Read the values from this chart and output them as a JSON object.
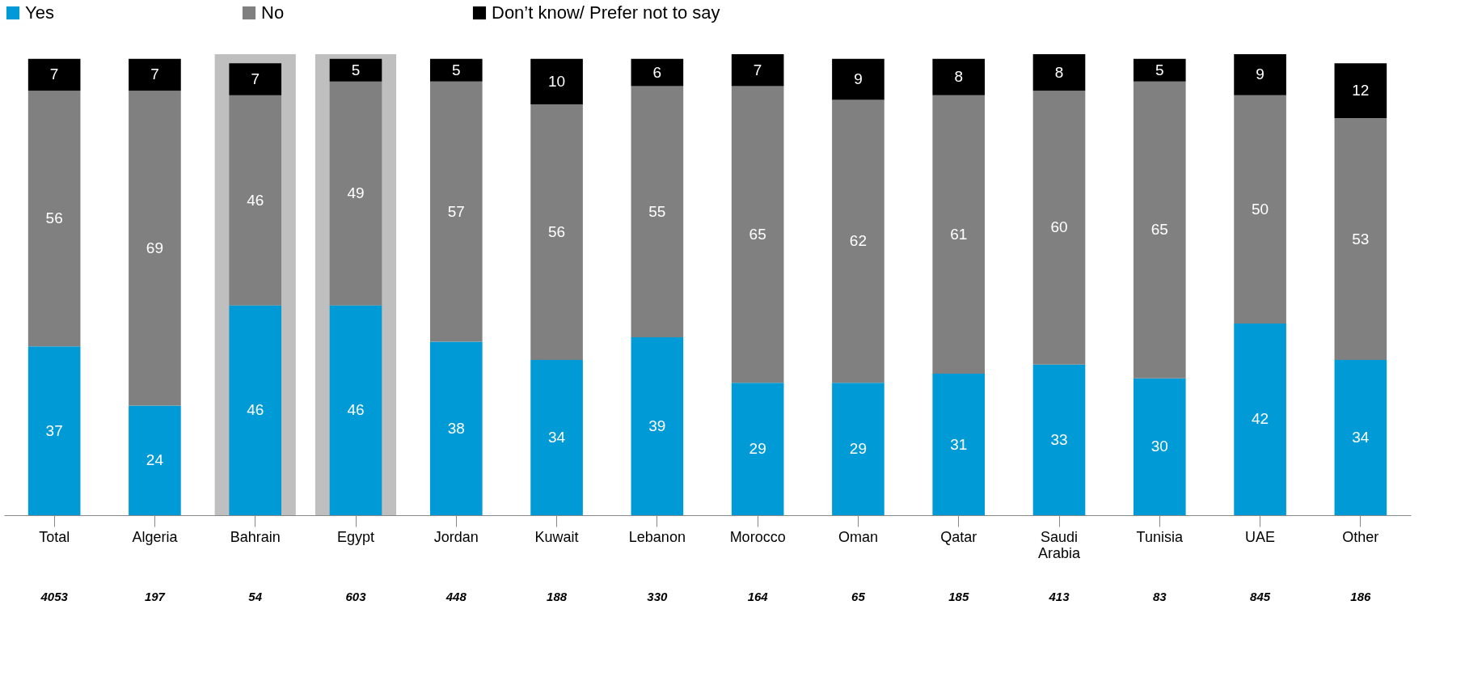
{
  "chart_data": {
    "type": "bar",
    "stacked": true,
    "data_labels": true,
    "legend": "top",
    "categories": [
      "Total",
      "Algeria",
      "Bahrain",
      "Egypt",
      "Jordan",
      "Kuwait",
      "Lebanon",
      "Morocco",
      "Oman",
      "Qatar",
      "Saudi Arabia",
      "Tunisia",
      "UAE",
      "Other"
    ],
    "series": [
      {
        "name": "Yes",
        "color": "#009bd6",
        "values": [
          37,
          24,
          46,
          46,
          38,
          34,
          39,
          29,
          29,
          31,
          33,
          30,
          42,
          34
        ]
      },
      {
        "name": "No",
        "color": "#808080",
        "values": [
          56,
          69,
          46,
          49,
          57,
          56,
          55,
          65,
          62,
          61,
          60,
          65,
          50,
          53
        ]
      },
      {
        "name": "Don’t know/ Prefer not to say",
        "color": "#000000",
        "values": [
          7,
          7,
          7,
          5,
          5,
          10,
          6,
          7,
          9,
          8,
          8,
          5,
          9,
          12
        ]
      }
    ],
    "bands": [
      {
        "axis": "x",
        "from": "Bahrain",
        "to": "Bahrain",
        "color": "#bfbfbf"
      },
      {
        "axis": "x",
        "from": "Egypt",
        "to": "Egypt",
        "color": "#bfbfbf"
      }
    ],
    "annotations": [
      "4053",
      "197",
      "54",
      "603",
      "448",
      "188",
      "330",
      "164",
      "65",
      "185",
      "413",
      "83",
      "845",
      "186"
    ]
  }
}
